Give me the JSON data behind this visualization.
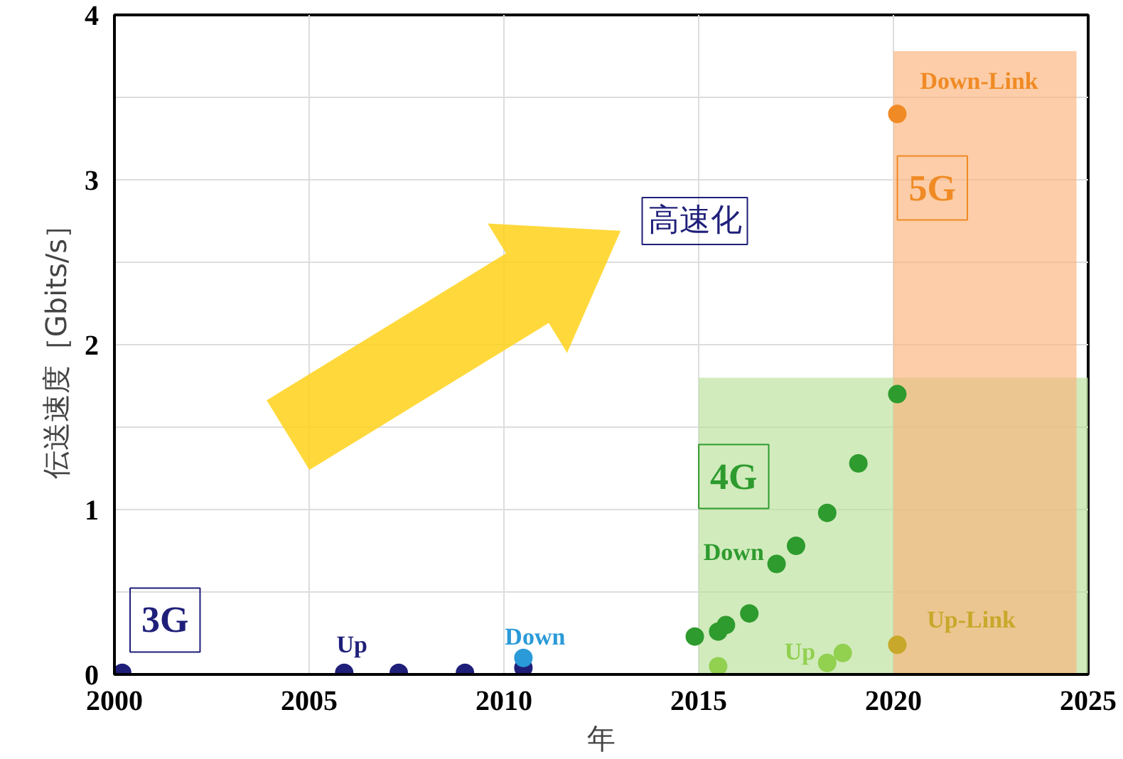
{
  "chart_data": {
    "type": "scatter",
    "xlabel": "年",
    "ylabel": "伝送速度［Gbits/s］",
    "xlim": [
      2000,
      2025
    ],
    "xticks": [
      2000,
      2005,
      2010,
      2015,
      2020,
      2025
    ],
    "ylim": [
      0,
      4
    ],
    "yticks": [
      0,
      {
        "value": 0.5,
        "label": null
      },
      1,
      {
        "value": 1.5,
        "label": null
      },
      2,
      {
        "value": 2.5,
        "label": null
      },
      3,
      {
        "value": 3.5,
        "label": null
      },
      4
    ],
    "grid": true,
    "series": [
      {
        "type": "area",
        "color": "#b8e09a",
        "x": [
          2015,
          2025
        ],
        "values": [
          1.8,
          1.8
        ]
      },
      {
        "type": "area",
        "color": "#fbb27a",
        "x": [
          2020,
          2024.7
        ],
        "values": [
          3.78,
          3.78
        ]
      },
      {
        "name": "Up",
        "color": "#1f1f7a",
        "x": [
          2000.2,
          2005.9,
          2007.3,
          2009.0,
          2010.5
        ],
        "values": [
          0.01,
          0.01,
          0.01,
          0.01,
          0.04
        ]
      },
      {
        "name": "Down",
        "color": "#2a9ad8",
        "x": [
          2010.5
        ],
        "values": [
          0.1
        ]
      },
      {
        "name": "Down",
        "color": "#2e9b2e",
        "x": [
          2014.9,
          2015.5,
          2015.7,
          2016.3,
          2017.0,
          2017.5,
          2018.3,
          2019.1,
          2020.1
        ],
        "values": [
          0.23,
          0.26,
          0.3,
          0.37,
          0.67,
          0.78,
          0.98,
          1.28,
          1.7
        ]
      },
      {
        "name": "Up",
        "color": "#92d050",
        "x": [
          2015.5,
          2018.3,
          2018.7
        ],
        "values": [
          0.05,
          0.07,
          0.13
        ]
      },
      {
        "name": "Up-Link",
        "color": "#c8a82a",
        "x": [
          2020.1
        ],
        "values": [
          0.18
        ]
      },
      {
        "name": "Down-Link",
        "color": "#f08a24",
        "x": [
          2020.1
        ],
        "values": [
          3.4
        ]
      }
    ],
    "annotations": [
      "3G",
      "4G",
      "5G",
      "高速化"
    ]
  }
}
